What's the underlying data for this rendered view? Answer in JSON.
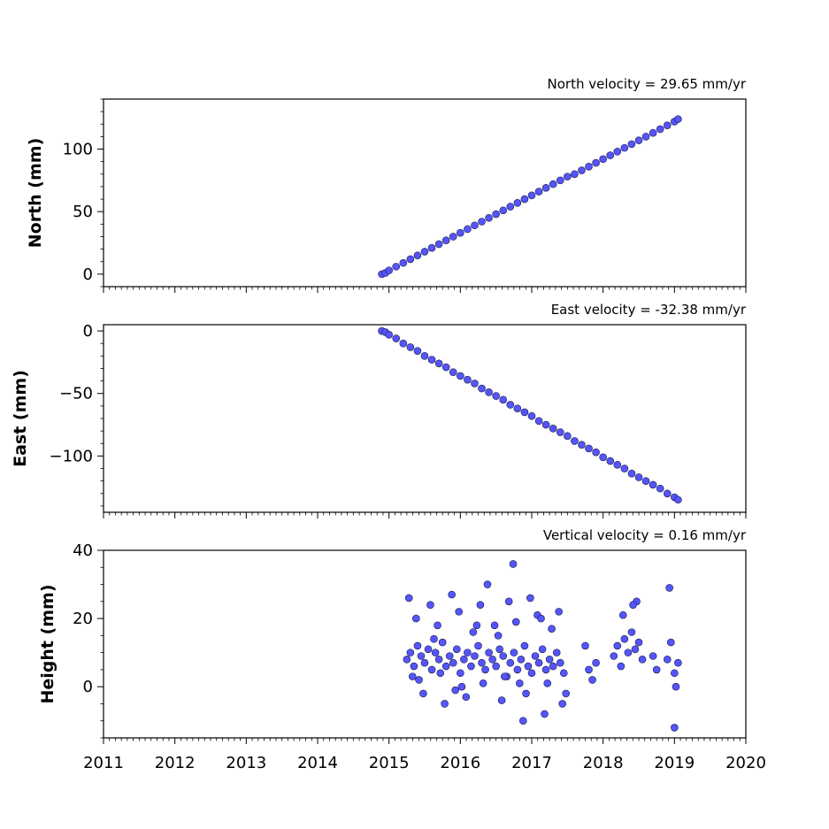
{
  "colors": {
    "marker_fill": "#5555ff",
    "marker_edge": "#1a1a40",
    "axis": "#000000",
    "background": "#ffffff"
  },
  "chart_data": [
    {
      "type": "scatter",
      "title": "North velocity = 29.65 mm/yr",
      "ylabel": "North (mm)",
      "xlim": [
        2011,
        2020
      ],
      "ylim": [
        -10,
        140
      ],
      "xticks": [
        "2011",
        "2012",
        "2013",
        "2014",
        "2015",
        "2016",
        "2017",
        "2018",
        "2019",
        "2020"
      ],
      "yticks": [
        0,
        50,
        100
      ],
      "show_xtick_labels": false,
      "series": [
        {
          "x": [
            2014.9,
            2014.95,
            2015.0,
            2015.1,
            2015.2,
            2015.3,
            2015.4,
            2015.5,
            2015.6,
            2015.7,
            2015.8,
            2015.9,
            2016.0,
            2016.1,
            2016.2,
            2016.3,
            2016.4,
            2016.5,
            2016.6,
            2016.7,
            2016.8,
            2016.9,
            2017.0,
            2017.1,
            2017.2,
            2017.3,
            2017.4,
            2017.5,
            2017.6,
            2017.7,
            2017.8,
            2017.9,
            2018.0,
            2018.1,
            2018.2,
            2018.3,
            2018.4,
            2018.5,
            2018.6,
            2018.7,
            2018.8,
            2018.9,
            2019.0,
            2019.05
          ],
          "y": [
            0,
            1,
            3,
            6,
            9,
            12,
            15,
            18,
            21,
            24,
            27,
            30,
            33,
            36,
            39,
            42,
            45,
            48,
            51,
            54,
            57,
            60,
            63,
            66,
            69,
            72,
            75,
            78,
            80,
            83,
            86,
            89,
            92,
            95,
            98,
            101,
            104,
            107,
            110,
            113,
            116,
            119,
            122,
            124
          ]
        }
      ]
    },
    {
      "type": "scatter",
      "title": "East velocity = -32.38 mm/yr",
      "ylabel": "East (mm)",
      "xlim": [
        2011,
        2020
      ],
      "ylim": [
        -145,
        5
      ],
      "xticks": [
        "2011",
        "2012",
        "2013",
        "2014",
        "2015",
        "2016",
        "2017",
        "2018",
        "2019",
        "2020"
      ],
      "yticks": [
        0,
        -50,
        -100
      ],
      "show_xtick_labels": false,
      "series": [
        {
          "x": [
            2014.9,
            2014.95,
            2015.0,
            2015.1,
            2015.2,
            2015.3,
            2015.4,
            2015.5,
            2015.6,
            2015.7,
            2015.8,
            2015.9,
            2016.0,
            2016.1,
            2016.2,
            2016.3,
            2016.4,
            2016.5,
            2016.6,
            2016.7,
            2016.8,
            2016.9,
            2017.0,
            2017.1,
            2017.2,
            2017.3,
            2017.4,
            2017.5,
            2017.6,
            2017.7,
            2017.8,
            2017.9,
            2018.0,
            2018.1,
            2018.2,
            2018.3,
            2018.4,
            2018.5,
            2018.6,
            2018.7,
            2018.8,
            2018.9,
            2019.0,
            2019.05
          ],
          "y": [
            0,
            -1,
            -3,
            -6,
            -10,
            -13,
            -16,
            -20,
            -23,
            -26,
            -29,
            -33,
            -36,
            -39,
            -42,
            -46,
            -49,
            -52,
            -55,
            -59,
            -62,
            -65,
            -68,
            -72,
            -75,
            -78,
            -81,
            -84,
            -88,
            -91,
            -94,
            -97,
            -101,
            -104,
            -107,
            -110,
            -114,
            -117,
            -120,
            -123,
            -126,
            -130,
            -133,
            -135
          ]
        }
      ]
    },
    {
      "type": "scatter",
      "title": "Vertical velocity = 0.16 mm/yr",
      "ylabel": "Height (mm)",
      "xlim": [
        2011,
        2020
      ],
      "ylim": [
        -15,
        40
      ],
      "xticks": [
        "2011",
        "2012",
        "2013",
        "2014",
        "2015",
        "2016",
        "2017",
        "2018",
        "2019",
        "2020"
      ],
      "yticks": [
        0,
        20,
        40
      ],
      "show_xtick_labels": true,
      "series": [
        {
          "x": [
            2015.25,
            2015.3,
            2015.35,
            2015.4,
            2015.45,
            2015.5,
            2015.55,
            2015.6,
            2015.65,
            2015.7,
            2015.75,
            2015.8,
            2015.85,
            2015.9,
            2015.95,
            2016.0,
            2016.05,
            2016.1,
            2016.15,
            2016.2,
            2016.25,
            2016.3,
            2016.35,
            2016.4,
            2016.45,
            2016.5,
            2016.55,
            2016.6,
            2016.65,
            2016.7,
            2016.75,
            2016.8,
            2016.85,
            2016.9,
            2016.95,
            2017.0,
            2017.05,
            2017.1,
            2017.15,
            2017.2,
            2017.25,
            2017.3,
            2017.35,
            2017.4,
            2017.45,
            2017.75,
            2017.8,
            2017.85,
            2017.9,
            2018.15,
            2018.2,
            2018.25,
            2018.3,
            2018.35,
            2018.4,
            2018.45,
            2018.5,
            2018.55,
            2018.7,
            2018.75,
            2018.9,
            2018.95,
            2019.0,
            2019.05,
            2015.28,
            2015.38,
            2015.48,
            2015.58,
            2015.68,
            2015.78,
            2015.88,
            2015.98,
            2016.08,
            2016.18,
            2016.28,
            2016.38,
            2016.48,
            2016.58,
            2016.68,
            2016.78,
            2016.88,
            2016.98,
            2017.08,
            2017.18,
            2017.28,
            2017.38,
            2017.48,
            2015.33,
            2015.63,
            2015.93,
            2016.23,
            2016.53,
            2016.83,
            2017.13,
            2017.43,
            2016.74,
            2018.93,
            2019.0,
            2018.47,
            2015.42,
            2015.72,
            2016.02,
            2016.32,
            2016.62,
            2016.92,
            2017.22,
            2018.28,
            2018.42,
            2019.02
          ],
          "y": [
            8,
            10,
            6,
            12,
            9,
            7,
            11,
            5,
            10,
            8,
            13,
            6,
            9,
            7,
            11,
            4,
            8,
            10,
            6,
            9,
            12,
            7,
            5,
            10,
            8,
            6,
            11,
            9,
            3,
            7,
            10,
            5,
            8,
            12,
            6,
            4,
            9,
            7,
            11,
            5,
            8,
            6,
            10,
            7,
            4,
            12,
            5,
            2,
            7,
            9,
            12,
            6,
            14,
            10,
            16,
            11,
            13,
            8,
            9,
            5,
            8,
            13,
            4,
            7,
            26,
            20,
            -2,
            24,
            18,
            -5,
            27,
            22,
            -3,
            16,
            24,
            30,
            18,
            -4,
            25,
            19,
            -10,
            26,
            21,
            -8,
            17,
            22,
            -2,
            3,
            14,
            -1,
            18,
            15,
            1,
            20,
            -5,
            36,
            29,
            -12,
            25,
            2,
            4,
            0,
            1,
            3,
            -2,
            1,
            21,
            24,
            0
          ]
        }
      ]
    }
  ]
}
